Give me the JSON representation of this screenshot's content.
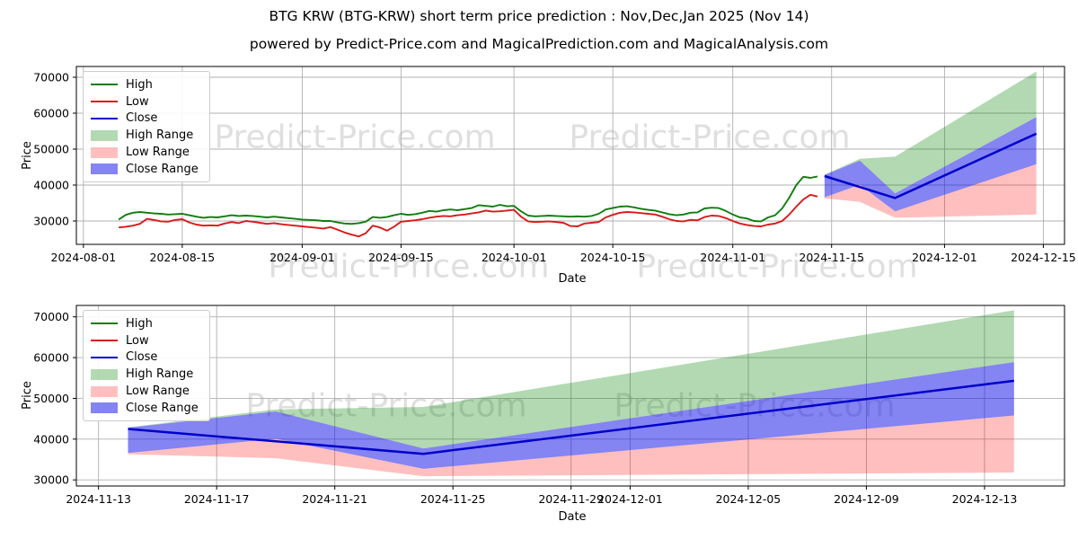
{
  "page": {
    "title": "BTG KRW (BTG-KRW) short term price prediction : Nov,Dec,Jan 2025 (Nov 14)",
    "subtitle": "powered by Predict-Price.com and MagicalPrediction.com and MagicalAnalysis.com",
    "watermark_text": "Predict-Price.com"
  },
  "colors": {
    "high_line": "#0f7d0f",
    "low_line": "#d81a1a",
    "close_line": "#0000cc",
    "high_range_fill": "rgba(0,128,0,0.30)",
    "low_range_fill": "rgba(255,0,0,0.25)",
    "close_range_fill": "rgba(10,10,230,0.50)",
    "grid": "#b0b0b0",
    "spine": "#000000"
  },
  "legend": {
    "items": [
      {
        "label": "High",
        "type": "line",
        "color_key": "high_line"
      },
      {
        "label": "Low",
        "type": "line",
        "color_key": "low_line"
      },
      {
        "label": "Close",
        "type": "line",
        "color_key": "close_line"
      },
      {
        "label": "High Range",
        "type": "rect",
        "color_key": "high_range_fill"
      },
      {
        "label": "Low Range",
        "type": "rect",
        "color_key": "low_range_fill"
      },
      {
        "label": "Close Range",
        "type": "rect",
        "color_key": "close_range_fill"
      }
    ]
  },
  "chart_data": {
    "type": "line",
    "title": "BTG KRW (BTG-KRW) short term price prediction : Nov,Dec,Jan 2025 (Nov 14)",
    "history": {
      "start_date": "2024-08-06",
      "interval_days": 1,
      "high": [
        30400,
        31700,
        32300,
        32500,
        32300,
        32100,
        32000,
        31800,
        31900,
        32000,
        31600,
        31200,
        30900,
        31100,
        31000,
        31300,
        31600,
        31400,
        31500,
        31400,
        31200,
        31000,
        31200,
        31000,
        30800,
        30600,
        30400,
        30300,
        30200,
        30000,
        30000,
        29600,
        29300,
        29200,
        29400,
        29800,
        31100,
        30900,
        31100,
        31600,
        32000,
        31700,
        31900,
        32300,
        32800,
        32600,
        33000,
        33200,
        33000,
        33300,
        33600,
        34400,
        34200,
        34000,
        34500,
        34100,
        34200,
        32700,
        31500,
        31300,
        31400,
        31500,
        31400,
        31300,
        31200,
        31300,
        31200,
        31400,
        32000,
        33200,
        33600,
        34000,
        34100,
        33800,
        33400,
        33100,
        32900,
        32400,
        31900,
        31600,
        31800,
        32300,
        32400,
        33500,
        33700,
        33600,
        32800,
        31800,
        31000,
        30700,
        30000,
        29900,
        31000,
        31600,
        33500,
        36500,
        40000,
        42300,
        42000,
        42400
      ],
      "low": [
        28200,
        28400,
        28700,
        29200,
        30600,
        30300,
        29900,
        29800,
        30300,
        30500,
        29600,
        29000,
        28700,
        28800,
        28700,
        29300,
        29700,
        29400,
        30000,
        29800,
        29500,
        29200,
        29400,
        29100,
        28900,
        28700,
        28500,
        28300,
        28100,
        27900,
        28300,
        27600,
        26800,
        26200,
        25700,
        26600,
        28700,
        28200,
        27300,
        28400,
        29800,
        30000,
        30200,
        30500,
        30900,
        31200,
        31400,
        31300,
        31600,
        31800,
        32100,
        32400,
        32900,
        32600,
        32700,
        32900,
        33100,
        31200,
        29900,
        29700,
        29800,
        29900,
        29700,
        29500,
        28600,
        28500,
        29300,
        29500,
        29700,
        31000,
        31700,
        32300,
        32500,
        32400,
        32200,
        32000,
        31800,
        31200,
        30500,
        30000,
        29900,
        30300,
        30200,
        31100,
        31500,
        31400,
        30800,
        30000,
        29300,
        28900,
        28600,
        28500,
        29000,
        29300,
        30000,
        31800,
        34000,
        36000,
        37300,
        36800
      ]
    },
    "forecast": {
      "dates": [
        "2024-11-14",
        "2024-11-19",
        "2024-11-24",
        "2024-12-14"
      ],
      "close": [
        42500,
        39450,
        36400,
        54300
      ],
      "close_upper": [
        42800,
        46800,
        37700,
        58900
      ],
      "close_lower": [
        36600,
        40100,
        32700,
        45800
      ],
      "high_upper": [
        42900,
        47300,
        47900,
        71600
      ],
      "high_lower": [
        42800,
        46800,
        37700,
        58900
      ],
      "low_upper": [
        36600,
        40100,
        32700,
        45800
      ],
      "low_lower": [
        36300,
        35300,
        30900,
        31800
      ]
    },
    "charts": [
      {
        "name": "full_view",
        "xlabel": "Date",
        "ylabel": "Price",
        "xlim": [
          "2024-07-31",
          "2024-12-18"
        ],
        "ylim": [
          23500,
          73000
        ],
        "x_ticks": [
          "2024-08-01",
          "2024-08-15",
          "2024-09-01",
          "2024-09-15",
          "2024-10-01",
          "2024-10-15",
          "2024-11-01",
          "2024-11-15",
          "2024-12-01",
          "2024-12-15"
        ],
        "y_ticks": [
          30000,
          40000,
          50000,
          60000,
          70000
        ],
        "show_history": true,
        "grid": true,
        "legend_position": "upper left"
      },
      {
        "name": "forecast_zoom",
        "xlabel": "Date",
        "ylabel": "Price",
        "xlim": [
          "2024-11-12T06:00:00",
          "2024-12-15T17:00:00"
        ],
        "ylim": [
          28500,
          72800
        ],
        "x_ticks": [
          "2024-11-13",
          "2024-11-17",
          "2024-11-21",
          "2024-11-25",
          "2024-11-29",
          "2024-12-01",
          "2024-12-05",
          "2024-12-09",
          "2024-12-13"
        ],
        "y_ticks": [
          30000,
          40000,
          50000,
          60000,
          70000
        ],
        "show_history": false,
        "grid": true,
        "legend_position": "upper left"
      }
    ]
  }
}
